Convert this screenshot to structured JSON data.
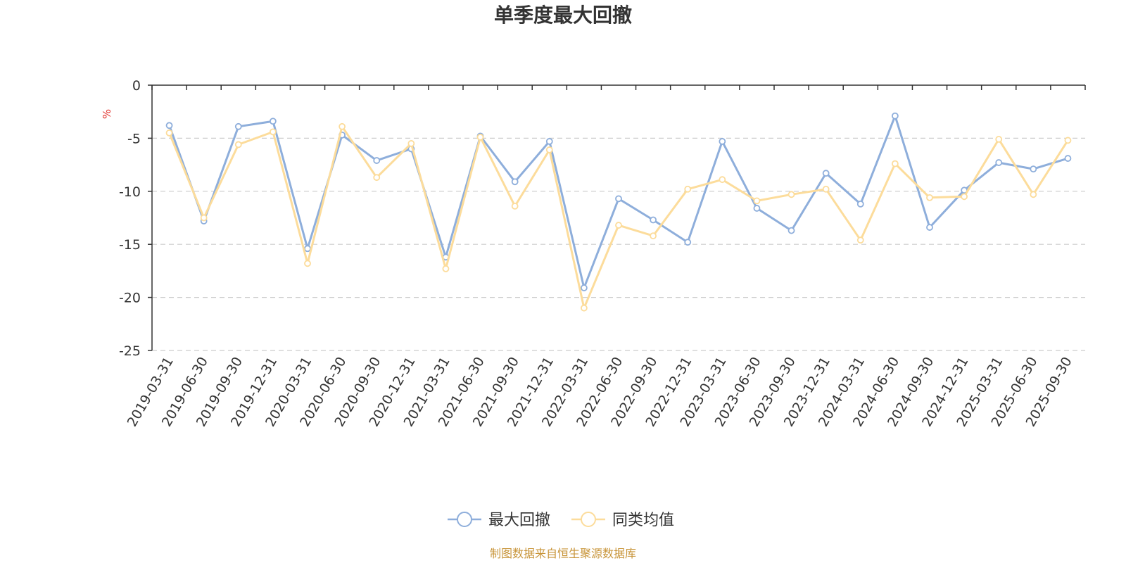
{
  "chart_data": {
    "type": "line",
    "title": "单季度最大回撤",
    "ylabel": "%",
    "ylim": [
      -25,
      0
    ],
    "yticks": [
      0,
      -5,
      -10,
      -15,
      -20,
      -25
    ],
    "grid": true,
    "legend_position": "bottom",
    "categories": [
      "2019-03-31",
      "2019-06-30",
      "2019-09-30",
      "2019-12-31",
      "2020-03-31",
      "2020-06-30",
      "2020-09-30",
      "2020-12-31",
      "2021-03-31",
      "2021-06-30",
      "2021-09-30",
      "2021-12-31",
      "2022-03-31",
      "2022-06-30",
      "2022-09-30",
      "2022-12-31",
      "2023-03-31",
      "2023-06-30",
      "2023-09-30",
      "2023-12-31",
      "2024-03-31",
      "2024-06-30",
      "2024-09-30",
      "2024-12-31",
      "2025-03-31",
      "2025-06-30",
      "2025-09-30"
    ],
    "series": [
      {
        "name": "最大回撤",
        "color": "#8eaedb",
        "values": [
          -3.8,
          -12.8,
          -3.9,
          -3.4,
          -15.4,
          -4.7,
          -7.1,
          -6.0,
          -16.2,
          -4.8,
          -9.1,
          -5.3,
          -19.1,
          -10.7,
          -12.7,
          -14.8,
          -5.3,
          -11.6,
          -13.7,
          -8.3,
          -11.2,
          -2.9,
          -13.4,
          -9.9,
          -7.3,
          -7.9,
          -6.9
        ]
      },
      {
        "name": "同类均值",
        "color": "#fcdc9b",
        "values": [
          -4.5,
          -12.5,
          -5.6,
          -4.4,
          -16.8,
          -3.9,
          -8.7,
          -5.5,
          -17.3,
          -4.9,
          -11.4,
          -6.1,
          -21.0,
          -13.2,
          -14.2,
          -9.8,
          -8.9,
          -10.9,
          -10.3,
          -9.8,
          -14.6,
          -7.4,
          -10.6,
          -10.5,
          -5.1,
          -10.3,
          -5.2
        ]
      }
    ]
  },
  "footer": {
    "source_text": "制图数据来自恒生聚源数据库",
    "source_color": "#c8953a"
  },
  "colors": {
    "axis": "#333333",
    "grid": "#cccccc",
    "unit": "#e0302a"
  }
}
